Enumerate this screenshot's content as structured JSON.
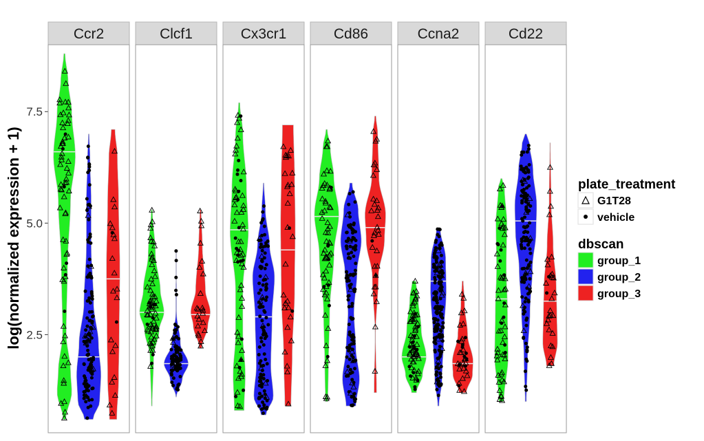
{
  "chart_data": {
    "type": "violin",
    "ylabel": "log(normalized expression + 1)",
    "xlabel": "",
    "ylim": [
      0.3,
      9.0
    ],
    "yticks": [
      {
        "value": 2.5,
        "label": "2.5"
      },
      {
        "value": 5.0,
        "label": "5.0"
      },
      {
        "value": 7.5,
        "label": "7.5"
      }
    ],
    "grid": false,
    "groups": [
      "group_1",
      "group_2",
      "group_3"
    ],
    "colors": {
      "group_1": "#22ee22",
      "group_2": "#2222ee",
      "group_3": "#ee2222"
    },
    "panels": [
      {
        "gene": "Ccr2",
        "violins": [
          {
            "group": "group_1",
            "median": 6.6,
            "y": [
              [
                0.6,
                0.1
              ],
              [
                1.2,
                0.6
              ],
              [
                1.7,
                0.5
              ],
              [
                2.5,
                0.15
              ],
              [
                4.0,
                0.25
              ],
              [
                5.5,
                0.5
              ],
              [
                6.5,
                0.9
              ],
              [
                7.5,
                0.6
              ],
              [
                8.2,
                0.3
              ],
              [
                8.8,
                0.05
              ]
            ],
            "points": [
              {
                "m": "tri",
                "n": 58
              },
              {
                "m": "dot",
                "n": 6
              }
            ]
          },
          {
            "group": "group_2",
            "median": 2.0,
            "y": [
              [
                0.6,
                0.35
              ],
              [
                1.0,
                0.9
              ],
              [
                1.6,
                1.0
              ],
              [
                2.3,
                0.8
              ],
              [
                3.2,
                0.4
              ],
              [
                4.5,
                0.2
              ],
              [
                5.5,
                0.2
              ],
              [
                6.5,
                0.1
              ],
              [
                7.0,
                0.03
              ]
            ],
            "points": [
              {
                "m": "dot",
                "n": 115
              },
              {
                "m": "tri",
                "n": 12
              }
            ]
          },
          {
            "group": "group_3",
            "median": 3.75,
            "y": [
              [
                0.6,
                0.3
              ],
              [
                1.5,
                0.45
              ],
              [
                2.5,
                0.5
              ],
              [
                4.0,
                0.55
              ],
              [
                5.5,
                0.45
              ],
              [
                6.5,
                0.35
              ],
              [
                7.1,
                0.15
              ]
            ],
            "points": [
              {
                "m": "tri",
                "n": 20
              },
              {
                "m": "dot",
                "n": 2
              }
            ]
          }
        ]
      },
      {
        "gene": "Clcf1",
        "violins": [
          {
            "group": "group_1",
            "median": 3.0,
            "y": [
              [
                0.9,
                0.03
              ],
              [
                2.0,
                0.15
              ],
              [
                2.6,
                0.6
              ],
              [
                3.0,
                1.0
              ],
              [
                3.5,
                0.7
              ],
              [
                4.3,
                0.3
              ],
              [
                5.3,
                0.05
              ]
            ],
            "points": [
              {
                "m": "tri",
                "n": 60
              },
              {
                "m": "dot",
                "n": 8
              }
            ]
          },
          {
            "group": "group_2",
            "median": 1.85,
            "y": [
              [
                1.1,
                0.02
              ],
              [
                1.5,
                0.5
              ],
              [
                1.85,
                1.0
              ],
              [
                2.3,
                0.35
              ],
              [
                3.0,
                0.03
              ],
              [
                4.4,
                0.02
              ]
            ],
            "points": [
              {
                "m": "dot",
                "n": 85
              },
              {
                "m": "tri",
                "n": 6
              }
            ]
          },
          {
            "group": "group_3",
            "median": 2.95,
            "y": [
              [
                2.2,
                0.1
              ],
              [
                2.7,
                0.6
              ],
              [
                3.0,
                0.8
              ],
              [
                3.5,
                0.4
              ],
              [
                4.5,
                0.15
              ],
              [
                5.3,
                0.05
              ]
            ],
            "points": [
              {
                "m": "tri",
                "n": 22
              }
            ]
          }
        ]
      },
      {
        "gene": "Cx3cr1",
        "violins": [
          {
            "group": "group_1",
            "median": 4.85,
            "y": [
              [
                0.8,
                0.4
              ],
              [
                1.6,
                0.5
              ],
              [
                2.5,
                0.3
              ],
              [
                3.5,
                0.3
              ],
              [
                4.8,
                0.75
              ],
              [
                5.8,
                0.6
              ],
              [
                7.0,
                0.3
              ],
              [
                7.7,
                0.05
              ]
            ],
            "points": [
              {
                "m": "tri",
                "n": 50
              },
              {
                "m": "dot",
                "n": 20
              }
            ]
          },
          {
            "group": "group_3",
            "median": 4.4,
            "y": [
              [
                0.9,
                0.25
              ],
              [
                2.0,
                0.35
              ],
              [
                3.5,
                0.55
              ],
              [
                5.0,
                0.6
              ],
              [
                6.0,
                0.55
              ],
              [
                7.2,
                0.45
              ]
            ],
            "points": [
              {
                "m": "tri",
                "n": 28
              },
              {
                "m": "dot",
                "n": 2
              }
            ]
          },
          {
            "group": "group_2",
            "median": 2.9,
            "y": [
              [
                0.7,
                0.2
              ],
              [
                1.1,
                0.8
              ],
              [
                1.8,
                0.6
              ],
              [
                2.9,
                0.7
              ],
              [
                3.8,
                0.9
              ],
              [
                4.5,
                0.5
              ],
              [
                5.3,
                0.15
              ],
              [
                5.9,
                0.03
              ]
            ],
            "points": [
              {
                "m": "dot",
                "n": 110
              },
              {
                "m": "tri",
                "n": 10
              }
            ]
          }
        ]
      },
      {
        "gene": "Cd86",
        "violins": [
          {
            "group": "group_1",
            "median": 5.15,
            "y": [
              [
                1.0,
                0.1
              ],
              [
                1.8,
                0.15
              ],
              [
                3.0,
                0.25
              ],
              [
                4.3,
                0.6
              ],
              [
                5.2,
                1.0
              ],
              [
                6.0,
                0.6
              ],
              [
                6.7,
                0.3
              ],
              [
                7.1,
                0.05
              ]
            ],
            "points": [
              {
                "m": "tri",
                "n": 55
              },
              {
                "m": "dot",
                "n": 8
              }
            ]
          },
          {
            "group": "group_3",
            "median": 4.9,
            "y": [
              [
                1.2,
                0.1
              ],
              [
                2.5,
                0.02
              ],
              [
                3.8,
                0.25
              ],
              [
                4.6,
                0.75
              ],
              [
                5.2,
                0.85
              ],
              [
                6.0,
                0.3
              ],
              [
                7.0,
                0.2
              ],
              [
                7.4,
                0.05
              ]
            ],
            "points": [
              {
                "m": "tri",
                "n": 30
              },
              {
                "m": "dot",
                "n": 2
              }
            ]
          },
          {
            "group": "group_2",
            "median": 3.85,
            "y": [
              [
                0.9,
                0.4
              ],
              [
                1.5,
                0.7
              ],
              [
                2.2,
                0.4
              ],
              [
                3.0,
                0.25
              ],
              [
                3.9,
                0.5
              ],
              [
                4.6,
                0.85
              ],
              [
                5.3,
                0.6
              ],
              [
                5.9,
                0.1
              ]
            ],
            "points": [
              {
                "m": "dot",
                "n": 110
              },
              {
                "m": "tri",
                "n": 10
              }
            ]
          }
        ]
      },
      {
        "gene": "Ccna2",
        "violins": [
          {
            "group": "group_1",
            "median": 2.0,
            "y": [
              [
                1.2,
                0.2
              ],
              [
                1.6,
                0.7
              ],
              [
                2.0,
                1.0
              ],
              [
                2.6,
                0.6
              ],
              [
                3.3,
                0.35
              ],
              [
                3.7,
                0.15
              ]
            ],
            "points": [
              {
                "m": "tri",
                "n": 55
              },
              {
                "m": "dot",
                "n": 15
              }
            ]
          },
          {
            "group": "group_3",
            "median": 1.85,
            "y": [
              [
                1.2,
                0.3
              ],
              [
                1.6,
                0.8
              ],
              [
                1.9,
                0.85
              ],
              [
                2.5,
                0.4
              ],
              [
                3.2,
                0.15
              ],
              [
                3.7,
                0.05
              ]
            ],
            "points": [
              {
                "m": "tri",
                "n": 25
              },
              {
                "m": "dot",
                "n": 10
              }
            ]
          },
          {
            "group": "group_2",
            "median": 3.7,
            "y": [
              [
                0.9,
                0.05
              ],
              [
                1.5,
                0.3
              ],
              [
                2.5,
                0.45
              ],
              [
                3.5,
                0.65
              ],
              [
                4.2,
                0.6
              ],
              [
                4.9,
                0.15
              ]
            ],
            "points": [
              {
                "m": "dot",
                "n": 150
              },
              {
                "m": "tri",
                "n": 20
              }
            ]
          }
        ]
      },
      {
        "gene": "Cd22",
        "violins": [
          {
            "group": "group_1",
            "median": 3.3,
            "y": [
              [
                1.0,
                0.2
              ],
              [
                2.0,
                0.55
              ],
              [
                3.0,
                0.5
              ],
              [
                4.0,
                0.4
              ],
              [
                5.0,
                0.45
              ],
              [
                5.8,
                0.25
              ],
              [
                6.0,
                0.05
              ]
            ],
            "points": [
              {
                "m": "tri",
                "n": 48
              },
              {
                "m": "dot",
                "n": 12
              }
            ]
          },
          {
            "group": "group_2",
            "median": 5.05,
            "y": [
              [
                1.0,
                0.05
              ],
              [
                2.0,
                0.15
              ],
              [
                3.0,
                0.35
              ],
              [
                4.0,
                0.55
              ],
              [
                4.8,
                0.85
              ],
              [
                5.4,
                0.9
              ],
              [
                6.2,
                0.6
              ],
              [
                6.8,
                0.3
              ],
              [
                7.0,
                0.05
              ]
            ],
            "points": [
              {
                "m": "dot",
                "n": 130
              },
              {
                "m": "tri",
                "n": 12
              }
            ]
          },
          {
            "group": "group_3",
            "median": 3.25,
            "y": [
              [
                1.8,
                0.3
              ],
              [
                2.3,
                0.6
              ],
              [
                3.0,
                0.55
              ],
              [
                3.6,
                0.5
              ],
              [
                4.5,
                0.25
              ],
              [
                5.5,
                0.08
              ],
              [
                6.8,
                0.02
              ]
            ],
            "points": [
              {
                "m": "tri",
                "n": 28
              },
              {
                "m": "dot",
                "n": 2
              }
            ]
          }
        ]
      }
    ],
    "legend": {
      "position": "right",
      "shape": {
        "title": "plate_treatment",
        "items": [
          {
            "marker": "triangle-open",
            "label": "G1T28"
          },
          {
            "marker": "dot",
            "label": "vehicle"
          }
        ]
      },
      "fill": {
        "title": "dbscan",
        "items": [
          {
            "group": "group_1",
            "label": "group_1"
          },
          {
            "group": "group_2",
            "label": "group_2"
          },
          {
            "group": "group_3",
            "label": "group_3"
          }
        ]
      }
    }
  }
}
